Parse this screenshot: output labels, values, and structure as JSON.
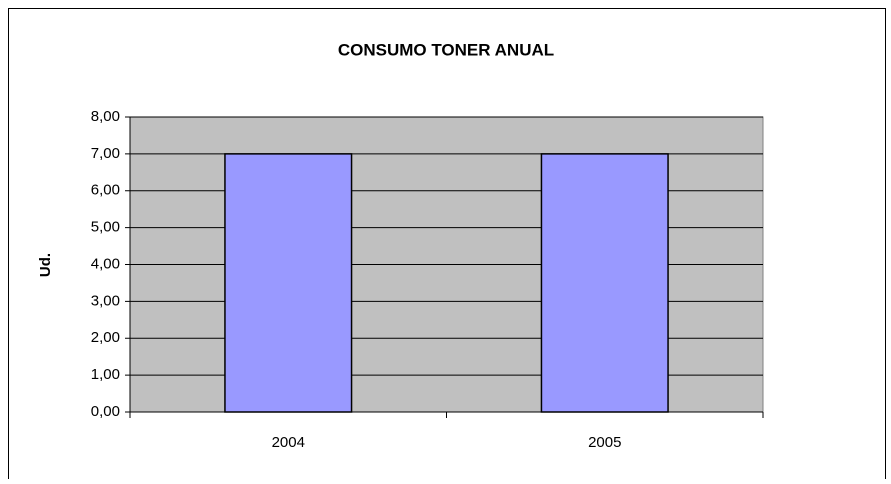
{
  "chart_data": {
    "type": "bar",
    "title": "CONSUMO TONER ANUAL",
    "y_label": "Ud.",
    "categories": [
      "2004",
      "2005"
    ],
    "values": [
      7,
      7
    ],
    "color": "#9999ff",
    "ylim": [
      0,
      8
    ],
    "yticks": [
      {
        "value": 0,
        "label": "0,00"
      },
      {
        "value": 1,
        "label": "1,00"
      },
      {
        "value": 2,
        "label": "2,00"
      },
      {
        "value": 3,
        "label": "3,00"
      },
      {
        "value": 4,
        "label": "4,00"
      },
      {
        "value": 5,
        "label": "5,00"
      },
      {
        "value": 6,
        "label": "6,00"
      },
      {
        "value": 7,
        "label": "7,00"
      },
      {
        "value": 8,
        "label": "8,00"
      }
    ],
    "grid": true
  }
}
